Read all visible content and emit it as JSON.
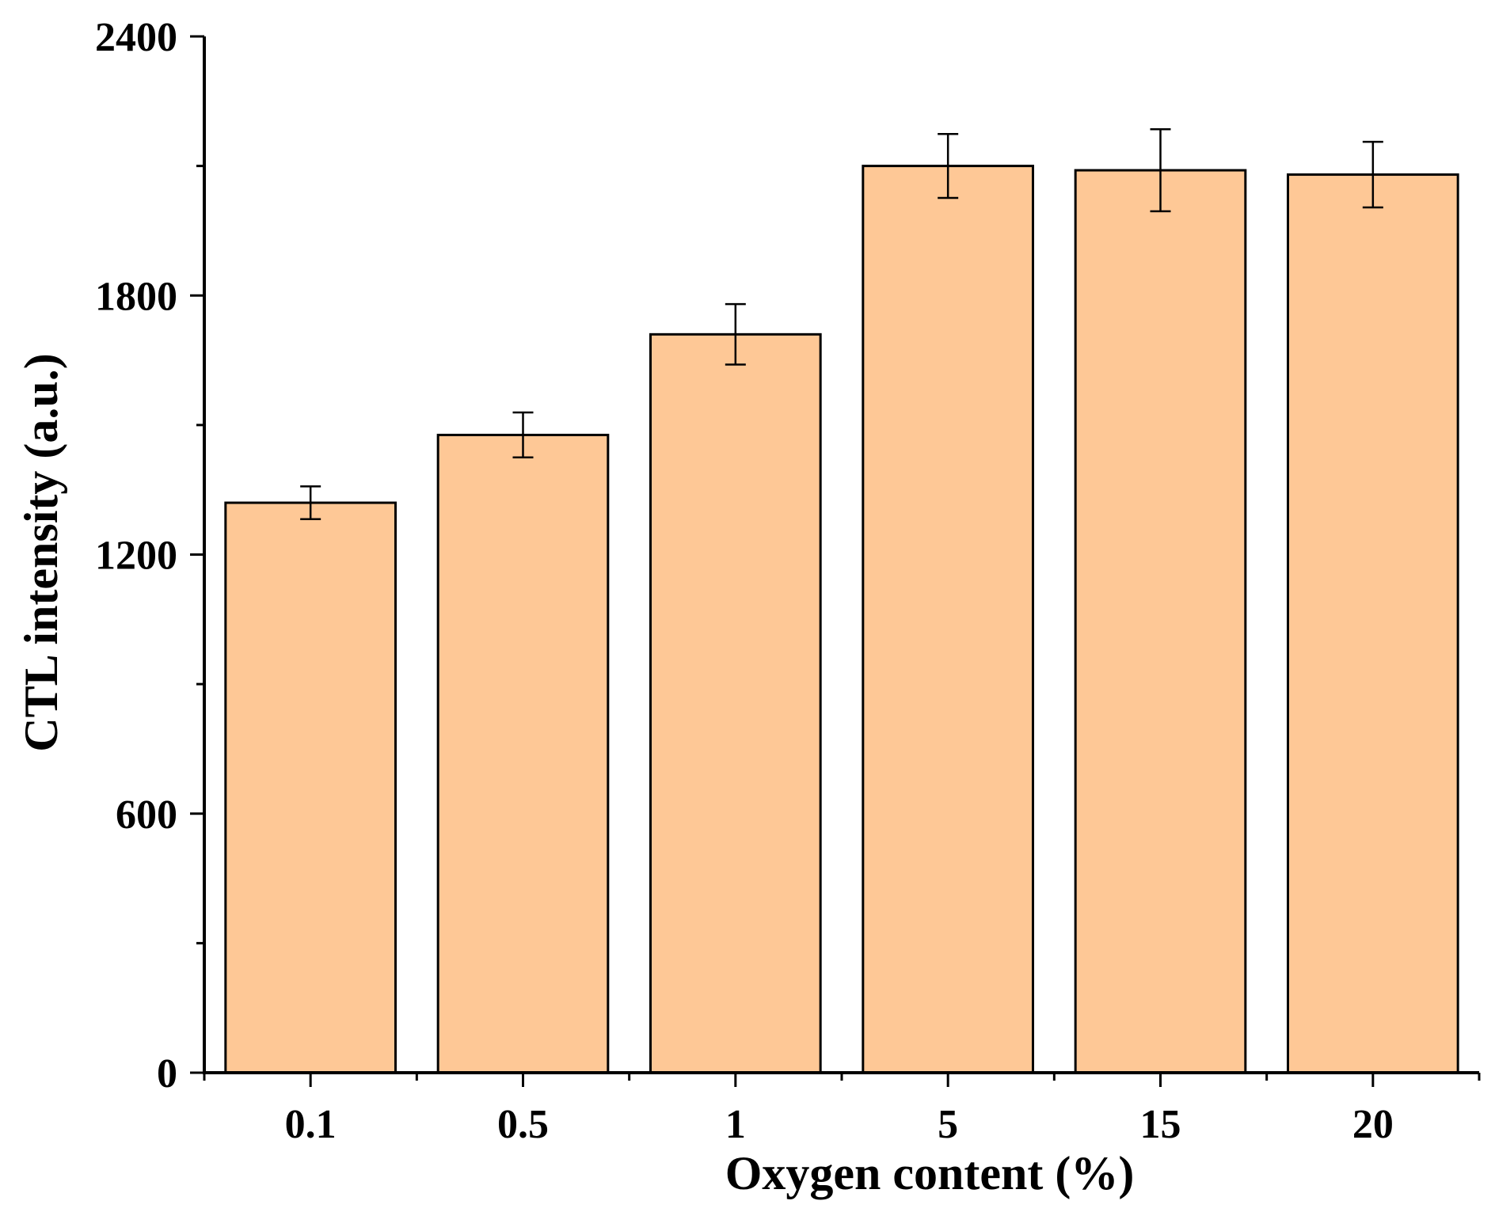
{
  "chart_data": {
    "type": "bar",
    "title": "",
    "xlabel": "Oxygen content (%)",
    "ylabel": "CTL intensity (a.u.)",
    "categories": [
      "0.1",
      "0.5",
      "1",
      "5",
      "15",
      "20"
    ],
    "values": [
      1320,
      1477,
      1710,
      2100,
      2090,
      2080
    ],
    "errors": [
      38,
      52,
      70,
      74,
      95,
      76
    ],
    "ylim": [
      0,
      2400
    ],
    "yticks": [
      0,
      600,
      1200,
      1800,
      2400
    ],
    "yticks_minor": [
      300,
      900,
      1500,
      2100
    ],
    "ytick_labels": [
      "0",
      "600",
      "1200",
      "1800",
      "2400"
    ],
    "grid": false,
    "legend": "none",
    "bar_color": "#FEC896",
    "edge_color": "#000000"
  }
}
